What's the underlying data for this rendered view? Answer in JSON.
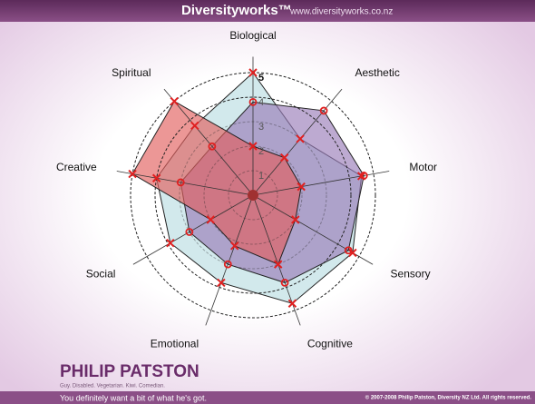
{
  "header": {
    "brand": "Diversityworks™",
    "url": "www.diversityworks.co.nz"
  },
  "footer": {
    "name": "PHILIP PATSTON",
    "tagline": "Guy. Disabled. Vegetarian. Kiwi. Comedian.",
    "slogan": "You definitely want a bit of what he's got.",
    "copyright": "© 2007-2008 Philip Patston, Diversity NZ Ltd. All rights reserved."
  },
  "chart_data": {
    "type": "radar",
    "categories": [
      "Biological",
      "Aesthetic",
      "Motor",
      "Sensory",
      "Cognitive",
      "Emotional",
      "Social",
      "Creative",
      "Spiritual"
    ],
    "rlim": [
      0,
      5
    ],
    "rticks": [
      1,
      2,
      3,
      4,
      5
    ],
    "grid": true,
    "series": [
      {
        "color": "#bfe0e4",
        "marker": "x",
        "values": [
          5,
          3,
          4.5,
          4.7,
          4.7,
          3.8,
          3.9,
          4,
          3.7
        ]
      },
      {
        "color": "#9a7db8",
        "marker": "o",
        "values": [
          3.8,
          4.5,
          4.6,
          4.5,
          3.8,
          3,
          3,
          3,
          2.6
        ]
      },
      {
        "color": "#e2605e",
        "marker": "x",
        "values": [
          2,
          2,
          2,
          2,
          3,
          2.2,
          2,
          5,
          5
        ]
      }
    ]
  }
}
